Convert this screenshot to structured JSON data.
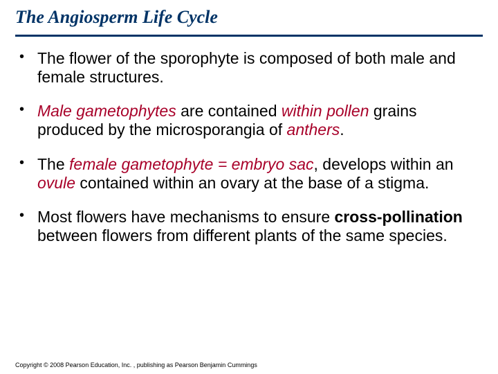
{
  "title": "The Angiosperm Life Cycle",
  "colors": {
    "title_color": "#003366",
    "rule_color": "#003366",
    "body_text": "#000000",
    "emphasis_color": "#a80029",
    "background": "#ffffff"
  },
  "typography": {
    "title_font": "Times New Roman",
    "title_style": "italic bold",
    "title_size_pt": 20,
    "body_font": "Arial",
    "body_size_pt": 17,
    "footer_size_pt": 7
  },
  "bullets": [
    {
      "runs": [
        {
          "t": "The flower of the sporophyte is composed of both male and female structures."
        }
      ]
    },
    {
      "runs": [
        {
          "t": "Male gametophytes ",
          "em": true
        },
        {
          "t": "are contained "
        },
        {
          "t": "within pollen ",
          "em": true
        },
        {
          "t": "grains produced by the microsporangia of "
        },
        {
          "t": "anthers",
          "em": true
        },
        {
          "t": "."
        }
      ]
    },
    {
      "runs": [
        {
          "t": "The "
        },
        {
          "t": "female gametophyte  = embryo sac",
          "em": true
        },
        {
          "t": ", develops within an "
        },
        {
          "t": "ovule",
          "em": true
        },
        {
          "t": " contained within an ovary at the base of a stigma."
        }
      ]
    },
    {
      "runs": [
        {
          "t": "Most flowers have mechanisms to ensure "
        },
        {
          "t": "cross-pollination",
          "bold": true
        },
        {
          "t": " between flowers from different plants of the same species."
        }
      ]
    }
  ],
  "footer": "Copyright © 2008 Pearson Education, Inc. , publishing as Pearson Benjamin Cummings"
}
